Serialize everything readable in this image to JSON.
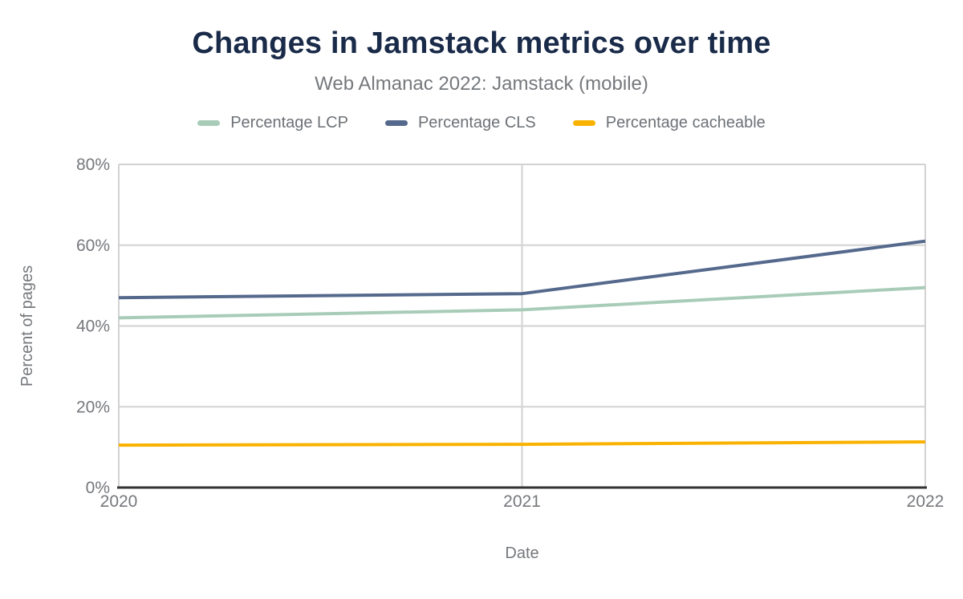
{
  "chart_data": {
    "type": "line",
    "title": "Changes in Jamstack metrics over time",
    "subtitle": "Web Almanac 2022: Jamstack (mobile)",
    "xlabel": "Date",
    "ylabel": "Percent of pages",
    "categories": [
      "2020",
      "2021",
      "2022"
    ],
    "series": [
      {
        "name": "Percentage LCP",
        "color": "#a8ccb8",
        "values": [
          42,
          44,
          49.5
        ]
      },
      {
        "name": "Percentage CLS",
        "color": "#55698d",
        "values": [
          47,
          48,
          61
        ]
      },
      {
        "name": "Percentage cacheable",
        "color": "#f9b200",
        "values": [
          10.5,
          10.7,
          11.3
        ]
      }
    ],
    "ylim": [
      0,
      80
    ],
    "yticks": [
      0,
      20,
      40,
      60,
      80
    ],
    "ytick_labels": [
      "0%",
      "20%",
      "40%",
      "60%",
      "80%"
    ],
    "grid": true,
    "legend_position": "top",
    "colors": {
      "grid": "#d2d2d2",
      "axis_line": "#333333",
      "tick_text": "#75787c",
      "axis_title_text": "#75787c",
      "title_text": "#1a2b49",
      "subtitle_text": "#75787c"
    }
  }
}
